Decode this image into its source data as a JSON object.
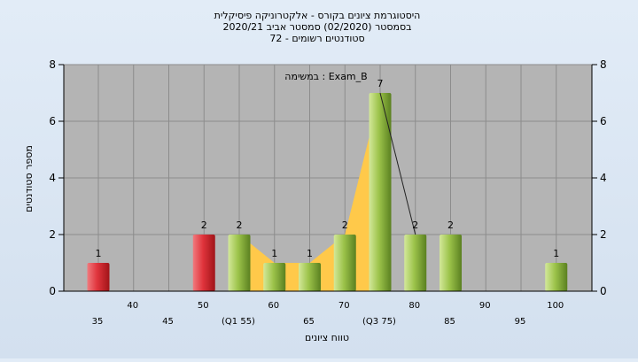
{
  "chart_data": {
    "type": "bar",
    "title_lines": [
      "היסטוגרמת ציונים בקורס - אלקטרוניקה פיסיקלית",
      "בסמסטר  (02/2020)  סמסטר אביב 2020/21",
      "סטודנטים רשומים - 72"
    ],
    "annotation": "במשימה : Exam_B",
    "xlabel": "טווח ציונים",
    "ylabel": "מספר סטודנטים",
    "ylim": [
      0,
      8
    ],
    "yticks": [
      0,
      2,
      4,
      6,
      8
    ],
    "grid": true,
    "categories": [
      "35",
      "40",
      "45",
      "50",
      "55",
      "60",
      "65",
      "70",
      "75",
      "80",
      "85",
      "90",
      "95",
      "100"
    ],
    "category_labels": [
      "35",
      "40",
      "45",
      "50",
      "(Q1 55)",
      "60",
      "65",
      "70",
      "(Q3 75)",
      "80",
      "85",
      "90",
      "95",
      "100"
    ],
    "values": [
      1,
      0,
      0,
      2,
      2,
      1,
      1,
      2,
      7,
      2,
      2,
      0,
      0,
      1
    ],
    "bar_colors": [
      "red",
      "none",
      "none",
      "red",
      "green",
      "green",
      "green",
      "green",
      "green",
      "green",
      "green",
      "none",
      "none",
      "green"
    ],
    "interquartile_area": {
      "from": "55",
      "to": "75"
    },
    "colors": {
      "plot_bg": "#b4b4b4",
      "red_bar": "#e0343c",
      "green_bar": "#9cc34a",
      "iqr_area": "#ffc94a"
    }
  }
}
